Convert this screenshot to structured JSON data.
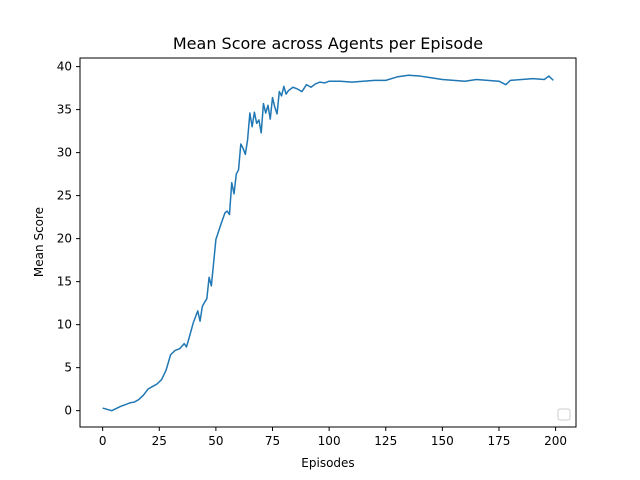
{
  "chart_data": {
    "type": "line",
    "title": "Mean Score across Agents per Episode",
    "xlabel": "Episodes",
    "ylabel": "Mean Score",
    "xlim": [
      -10,
      209
    ],
    "ylim": [
      -1.9,
      41.0
    ],
    "xticks": [
      0,
      25,
      50,
      75,
      100,
      125,
      150,
      175,
      200
    ],
    "yticks": [
      0,
      5,
      10,
      15,
      20,
      25,
      30,
      35,
      40
    ],
    "legend": "lower-right (empty)",
    "grid": false,
    "color": "#1f77b4",
    "series": [
      {
        "x": [
          0,
          4,
          8,
          10,
          12,
          14,
          16,
          18,
          20,
          22,
          24,
          26,
          28,
          30,
          32,
          34,
          36,
          37,
          38,
          40,
          42,
          43,
          44,
          45,
          46,
          47,
          48,
          50,
          52,
          54,
          55,
          56,
          57,
          58,
          59,
          60,
          61,
          62,
          63,
          64,
          65,
          66,
          67,
          68,
          69,
          70,
          71,
          72,
          73,
          74,
          75,
          76,
          77,
          78,
          79,
          80,
          81,
          82,
          84,
          86,
          88,
          90,
          92,
          94,
          96,
          98,
          100,
          105,
          110,
          115,
          120,
          125,
          130,
          135,
          140,
          145,
          150,
          155,
          160,
          165,
          170,
          175,
          178,
          180,
          185,
          190,
          195,
          197,
          199
        ],
        "y": [
          0.3,
          0.0,
          0.5,
          0.7,
          0.9,
          1.0,
          1.3,
          1.8,
          2.5,
          2.8,
          3.1,
          3.6,
          4.7,
          6.5,
          7.0,
          7.2,
          7.8,
          7.4,
          8.3,
          10.2,
          11.6,
          10.4,
          12.1,
          12.6,
          13.0,
          15.5,
          14.5,
          19.9,
          21.5,
          23.0,
          23.2,
          22.8,
          26.5,
          25.2,
          27.5,
          28.0,
          31.0,
          30.5,
          29.8,
          31.5,
          34.6,
          33.0,
          34.7,
          33.4,
          33.8,
          32.3,
          35.7,
          34.6,
          35.5,
          33.9,
          36.4,
          35.3,
          34.5,
          37.1,
          36.6,
          37.7,
          36.8,
          37.2,
          37.6,
          37.4,
          37.1,
          37.9,
          37.6,
          38.0,
          38.2,
          38.1,
          38.3,
          38.3,
          38.2,
          38.3,
          38.4,
          38.4,
          38.8,
          39.0,
          38.9,
          38.7,
          38.5,
          38.4,
          38.3,
          38.5,
          38.4,
          38.3,
          37.9,
          38.4,
          38.5,
          38.6,
          38.5,
          38.9,
          38.4
        ]
      }
    ]
  }
}
